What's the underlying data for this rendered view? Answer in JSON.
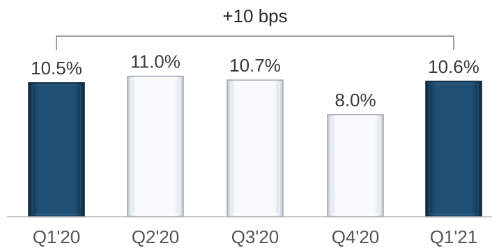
{
  "chart_data": {
    "type": "bar",
    "categories": [
      "Q1'20",
      "Q2'20",
      "Q3'20",
      "Q4'20",
      "Q1'21"
    ],
    "values": [
      10.5,
      11.0,
      10.7,
      8.0,
      10.6
    ],
    "value_labels": [
      "10.5%",
      "11.0%",
      "10.7%",
      "8.0%",
      "10.6%"
    ],
    "bar_styles": [
      "highlight",
      "normal",
      "normal",
      "normal",
      "highlight"
    ],
    "colors": {
      "highlight": "#1d4a6e",
      "normal": "#f2f5fa",
      "border": "#9aa3ad",
      "axis": "#b5b5b5"
    },
    "annotation": {
      "text": "+10 bps",
      "from": "Q1'20",
      "to": "Q1'21"
    },
    "ylim": [
      0,
      11.8
    ],
    "grid": false,
    "legend": "none"
  }
}
